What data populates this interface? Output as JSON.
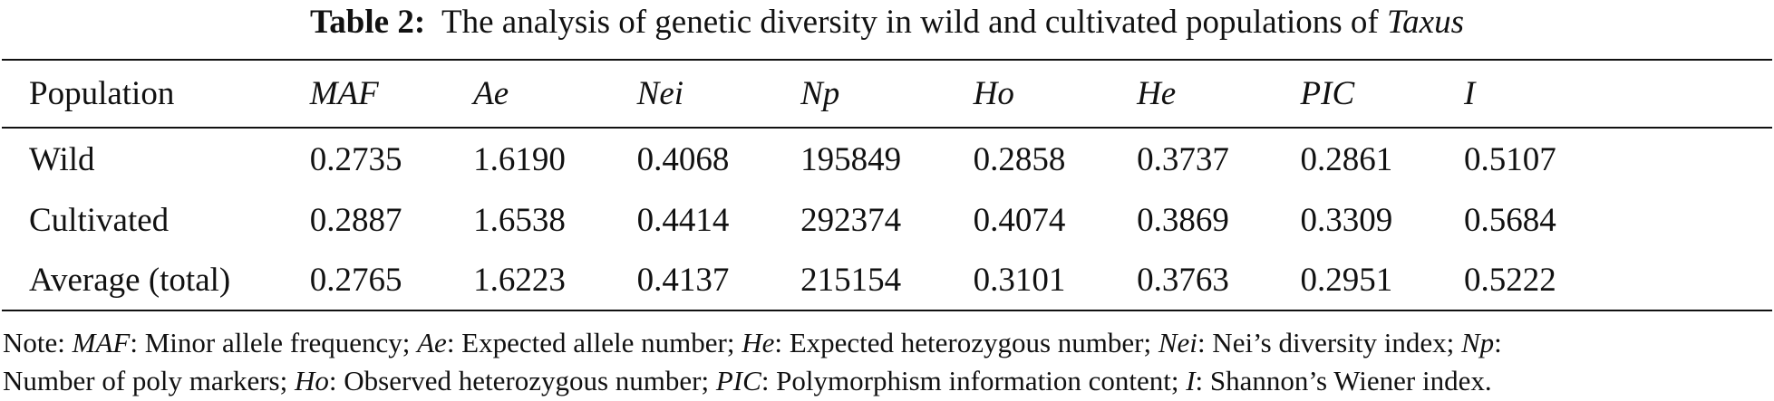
{
  "caption": {
    "label": "Table 2:",
    "text": "The analysis of genetic diversity in wild and cultivated populations of",
    "genus": "Taxus"
  },
  "headers": [
    "Population",
    "MAF",
    "Ae",
    "Nei",
    "Np",
    "Ho",
    "He",
    "PIC",
    "I"
  ],
  "rows": [
    [
      "Wild",
      "0.2735",
      "1.6190",
      "0.4068",
      "195849",
      "0.2858",
      "0.3737",
      "0.2861",
      "0.5107"
    ],
    [
      "Cultivated",
      "0.2887",
      "1.6538",
      "0.4414",
      "292374",
      "0.4074",
      "0.3869",
      "0.3309",
      "0.5684"
    ],
    [
      "Average (total)",
      "0.2765",
      "1.6223",
      "0.4137",
      "215154",
      "0.3101",
      "0.3763",
      "0.2951",
      "0.5222"
    ]
  ],
  "note": {
    "prefix": "Note:",
    "line1": [
      {
        "abbr": "MAF",
        "def": ": Minor allele frequency; "
      },
      {
        "abbr": "Ae",
        "def": ": Expected allele number; "
      },
      {
        "abbr": "He",
        "def": ": Expected heterozygous number; "
      },
      {
        "abbr": "Nei",
        "def": ": Nei’s diversity index; "
      },
      {
        "abbr": "Np",
        "def": ":"
      }
    ],
    "line2": [
      {
        "abbr": "",
        "def": "Number of poly markers; "
      },
      {
        "abbr": "Ho",
        "def": ": Observed heterozygous number; "
      },
      {
        "abbr": "PIC",
        "def": ": Polymorphism information content; "
      },
      {
        "abbr": "I",
        "def": ": Shannon’s Wiener index."
      }
    ]
  }
}
